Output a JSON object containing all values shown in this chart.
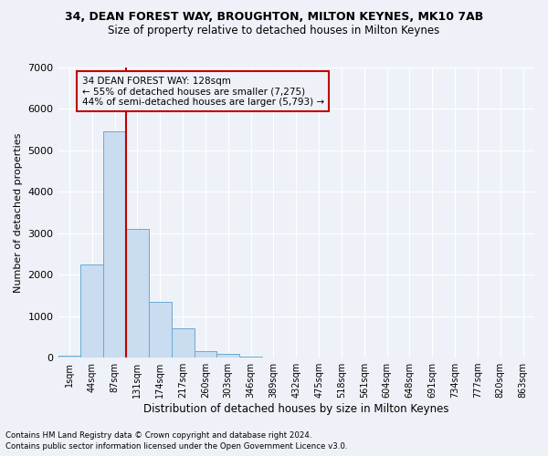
{
  "title": "34, DEAN FOREST WAY, BROUGHTON, MILTON KEYNES, MK10 7AB",
  "subtitle": "Size of property relative to detached houses in Milton Keynes",
  "xlabel": "Distribution of detached houses by size in Milton Keynes",
  "ylabel": "Number of detached properties",
  "footnote1": "Contains HM Land Registry data © Crown copyright and database right 2024.",
  "footnote2": "Contains public sector information licensed under the Open Government Licence v3.0.",
  "bar_labels": [
    "1sqm",
    "44sqm",
    "87sqm",
    "131sqm",
    "174sqm",
    "217sqm",
    "260sqm",
    "303sqm",
    "346sqm",
    "389sqm",
    "432sqm",
    "475sqm",
    "518sqm",
    "561sqm",
    "604sqm",
    "648sqm",
    "691sqm",
    "734sqm",
    "777sqm",
    "820sqm",
    "863sqm"
  ],
  "bar_values": [
    50,
    2250,
    5450,
    3100,
    1350,
    700,
    160,
    80,
    30,
    0,
    0,
    0,
    0,
    0,
    0,
    0,
    0,
    0,
    0,
    0,
    0
  ],
  "bar_color": "#c9dcf0",
  "bar_edgecolor": "#6aaad4",
  "vline_x_index": 2.5,
  "vline_color": "#c00000",
  "ylim": [
    0,
    7000
  ],
  "yticks": [
    0,
    1000,
    2000,
    3000,
    4000,
    5000,
    6000,
    7000
  ],
  "annotation_text": "34 DEAN FOREST WAY: 128sqm\n← 55% of detached houses are smaller (7,275)\n44% of semi-detached houses are larger (5,793) →",
  "annotation_box_edgecolor": "#c00000",
  "background_color": "#eef2f8",
  "grid_color": "#ffffff"
}
